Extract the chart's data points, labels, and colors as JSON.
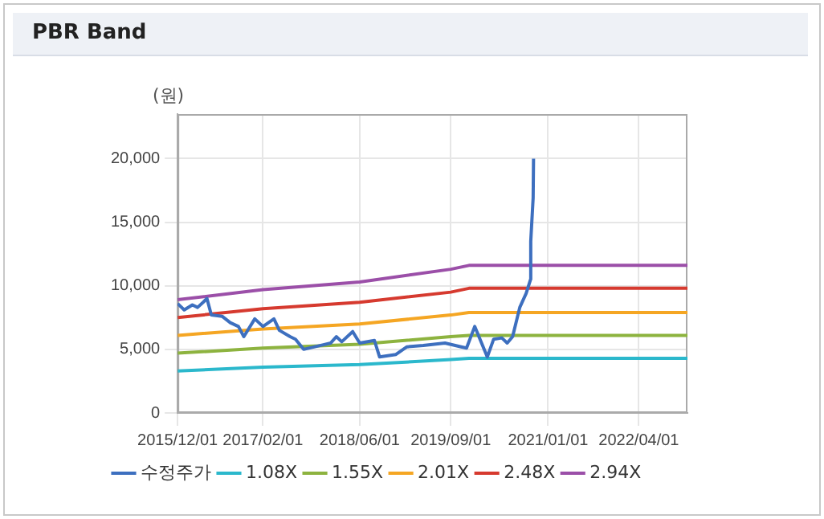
{
  "chart_data": {
    "type": "line",
    "title": "PBR Band",
    "ylabel": "(원)",
    "xlim": [
      "2015-12-01",
      "2022-12-01"
    ],
    "xticks": [
      {
        "value": "2015-12-01",
        "label": "2015/12/01"
      },
      {
        "value": "2017-02-01",
        "label": "2017/02/01"
      },
      {
        "value": "2018-06-01",
        "label": "2018/06/01"
      },
      {
        "value": "2019-09-01",
        "label": "2019/09/01"
      },
      {
        "value": "2021-01-01",
        "label": "2021/01/01"
      },
      {
        "value": "2022-04-01",
        "label": "2022/04/01"
      }
    ],
    "ylim": [
      0,
      23500
    ],
    "yticks": [
      0,
      {
        "value": 5000,
        "label": "5,000"
      },
      {
        "value": 10000,
        "label": "10,000"
      },
      {
        "value": 15000,
        "label": "15,000"
      },
      {
        "value": 20000,
        "label": "20,000"
      }
    ],
    "grid": true,
    "legend": "bottom",
    "marker": "none",
    "line_style": "solid",
    "series": [
      {
        "name": "수정주가",
        "color": "#3d6fbf",
        "x": [
          "2015-12-01",
          "2016-01-03",
          "2016-02-13",
          "2016-03-10",
          "2016-04-07",
          "2016-04-26",
          "2016-05-18",
          "2016-07-11",
          "2016-08-21",
          "2016-10-01",
          "2016-10-28",
          "2016-12-22",
          "2017-02-01",
          "2017-03-28",
          "2017-04-24",
          "2017-06-17",
          "2017-07-14",
          "2017-08-24",
          "2017-11-14",
          "2018-01-07",
          "2018-02-04",
          "2018-03-03",
          "2018-04-27",
          "2018-06-01",
          "2018-08-14",
          "2018-09-09",
          "2018-11-30",
          "2019-01-24",
          "2019-04-16",
          "2019-08-03",
          "2019-10-23",
          "2019-11-19",
          "2019-12-30",
          "2020-03-02",
          "2020-04-03",
          "2020-05-14",
          "2020-06-10",
          "2020-07-07",
          "2020-08-12",
          "2020-09-13",
          "2020-10-05",
          "2020-10-06",
          "2020-10-18",
          "2020-10-20"
        ],
        "values": [
          8600,
          8100,
          8500,
          8300,
          8700,
          9000,
          7700,
          7600,
          7100,
          6800,
          6000,
          7400,
          6800,
          7400,
          6500,
          6000,
          5800,
          5000,
          5300,
          5500,
          6000,
          5600,
          6400,
          5500,
          5700,
          4400,
          4600,
          5200,
          5300,
          5500,
          5200,
          5100,
          6800,
          4400,
          5800,
          5900,
          5500,
          6000,
          8300,
          9400,
          10500,
          13500,
          16900,
          20000
        ]
      },
      {
        "name": "1.08X",
        "color": "#2bb8cc",
        "x": [
          "2015-12-01",
          "2017-02-01",
          "2018-06-01",
          "2019-09-01",
          "2019-12-01",
          "2022-12-01"
        ],
        "values": [
          3300,
          3600,
          3800,
          4200,
          4300,
          4300
        ]
      },
      {
        "name": "1.55X",
        "color": "#8db33f",
        "x": [
          "2015-12-01",
          "2017-02-01",
          "2018-06-01",
          "2019-09-01",
          "2019-12-01",
          "2022-12-01"
        ],
        "values": [
          4700,
          5100,
          5400,
          6000,
          6100,
          6100
        ]
      },
      {
        "name": "2.01X",
        "color": "#f5a623",
        "x": [
          "2015-12-01",
          "2017-02-01",
          "2018-06-01",
          "2019-09-01",
          "2019-12-01",
          "2022-12-01"
        ],
        "values": [
          6100,
          6600,
          7000,
          7700,
          7900,
          7900
        ]
      },
      {
        "name": "2.48X",
        "color": "#d63a2f",
        "x": [
          "2015-12-01",
          "2017-02-01",
          "2018-06-01",
          "2019-09-01",
          "2019-12-01",
          "2022-12-01"
        ],
        "values": [
          7500,
          8200,
          8700,
          9500,
          9800,
          9800
        ]
      },
      {
        "name": "2.94X",
        "color": "#9b4fa8",
        "x": [
          "2015-12-01",
          "2017-02-01",
          "2018-06-01",
          "2019-09-01",
          "2019-12-01",
          "2022-12-01"
        ],
        "values": [
          8900,
          9700,
          10300,
          11300,
          11600,
          11600
        ]
      }
    ]
  }
}
